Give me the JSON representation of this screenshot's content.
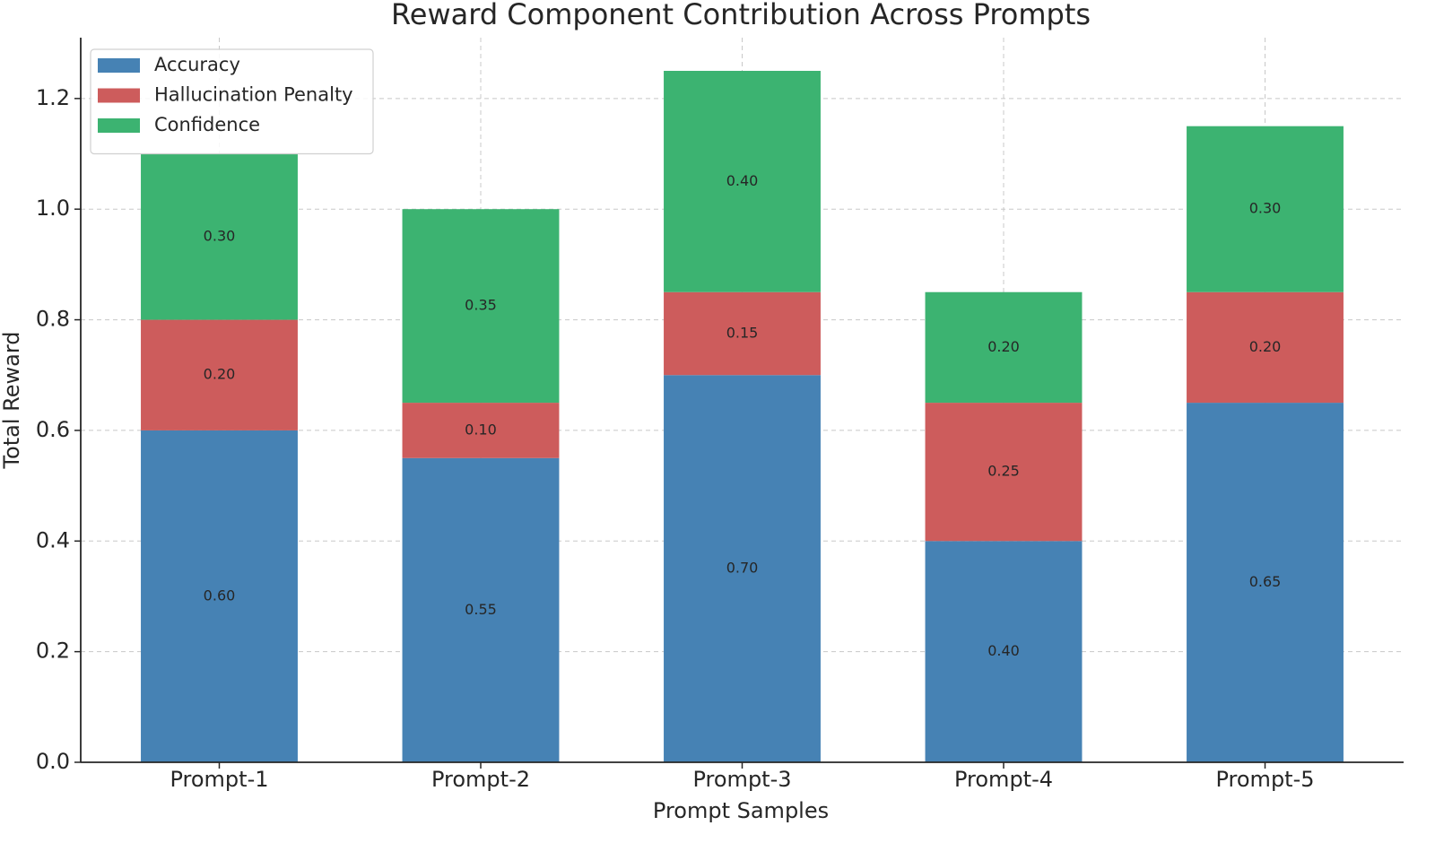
{
  "chart_data": {
    "type": "stacked_bar",
    "title": "Reward Component Contribution Across Prompts",
    "x_label": "Prompt Samples",
    "y_label": "Total Reward",
    "categories": [
      "Prompt-1",
      "Prompt-2",
      "Prompt-3",
      "Prompt-4",
      "Prompt-5"
    ],
    "series": [
      {
        "name": "Accuracy",
        "color": "#4682b4",
        "values": [
          0.6,
          0.55,
          0.7,
          0.4,
          0.65
        ],
        "value_labels": [
          "0.60",
          "0.55",
          "0.70",
          "0.40",
          "0.65"
        ]
      },
      {
        "name": "Hallucination Penalty",
        "color": "#cd5c5c",
        "values": [
          0.2,
          0.1,
          0.15,
          0.25,
          0.2
        ],
        "value_labels": [
          "0.20",
          "0.10",
          "0.15",
          "0.25",
          "0.20"
        ]
      },
      {
        "name": "Confidence",
        "color": "#3cb371",
        "values": [
          0.3,
          0.35,
          0.4,
          0.2,
          0.3
        ],
        "value_labels": [
          "0.30",
          "0.35",
          "0.40",
          "0.20",
          "0.30"
        ]
      }
    ],
    "ylim": [
      0,
      1.31
    ],
    "yticks": [
      {
        "value": 0,
        "label": "0.0"
      },
      0.2,
      0.4,
      0.6,
      0.8,
      {
        "value": 1,
        "label": "1.0"
      },
      1.2
    ],
    "grid": true,
    "legend": "upper left"
  }
}
